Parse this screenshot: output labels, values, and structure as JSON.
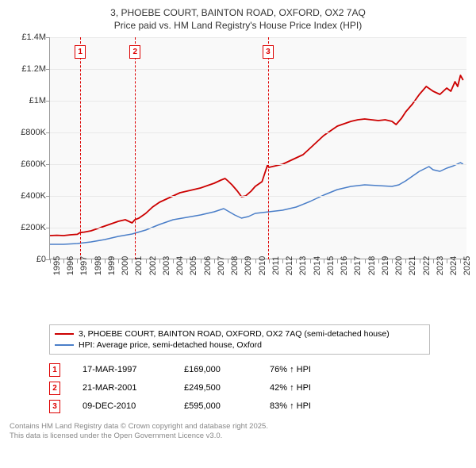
{
  "title_line1": "3, PHOEBE COURT, BAINTON ROAD, OXFORD, OX2 7AQ",
  "title_line2": "Price paid vs. HM Land Registry's House Price Index (HPI)",
  "chart": {
    "type": "line",
    "background_color": "#f9f9f9",
    "grid_color": "#e8e8e8",
    "axis_color": "#999999",
    "text_color": "#333333",
    "x_range": [
      1995,
      2025.5
    ],
    "y_range": [
      0,
      1400000
    ],
    "y_ticks": [
      0,
      200000,
      400000,
      600000,
      800000,
      1000000,
      1200000,
      1400000
    ],
    "y_tick_labels": [
      "£0",
      "£200K",
      "£400K",
      "£600K",
      "£800K",
      "£1M",
      "£1.2M",
      "£1.4M"
    ],
    "x_ticks": [
      1995,
      1996,
      1997,
      1998,
      1999,
      2000,
      2001,
      2002,
      2003,
      2004,
      2005,
      2006,
      2007,
      2008,
      2009,
      2010,
      2011,
      2012,
      2013,
      2014,
      2015,
      2016,
      2017,
      2018,
      2019,
      2020,
      2021,
      2022,
      2023,
      2024,
      2025
    ],
    "series": [
      {
        "name": "price_paid",
        "label": "3, PHOEBE COURT, BAINTON ROAD, OXFORD, OX2 7AQ (semi-detached house)",
        "color": "#cc0000",
        "line_width": 1.8,
        "points": [
          [
            1995.0,
            150000
          ],
          [
            1995.5,
            152000
          ],
          [
            1996.0,
            150000
          ],
          [
            1996.5,
            155000
          ],
          [
            1997.0,
            158000
          ],
          [
            1997.2,
            169000
          ],
          [
            1997.5,
            172000
          ],
          [
            1998.0,
            180000
          ],
          [
            1998.5,
            195000
          ],
          [
            1999.0,
            210000
          ],
          [
            1999.5,
            225000
          ],
          [
            2000.0,
            240000
          ],
          [
            2000.5,
            250000
          ],
          [
            2001.0,
            230000
          ],
          [
            2001.2,
            249500
          ],
          [
            2001.5,
            260000
          ],
          [
            2002.0,
            290000
          ],
          [
            2002.5,
            330000
          ],
          [
            2003.0,
            360000
          ],
          [
            2003.5,
            380000
          ],
          [
            2004.0,
            400000
          ],
          [
            2004.5,
            420000
          ],
          [
            2005.0,
            430000
          ],
          [
            2005.5,
            440000
          ],
          [
            2006.0,
            450000
          ],
          [
            2006.5,
            465000
          ],
          [
            2007.0,
            480000
          ],
          [
            2007.5,
            500000
          ],
          [
            2007.8,
            510000
          ],
          [
            2008.0,
            495000
          ],
          [
            2008.3,
            470000
          ],
          [
            2008.7,
            430000
          ],
          [
            2009.0,
            395000
          ],
          [
            2009.3,
            400000
          ],
          [
            2009.7,
            430000
          ],
          [
            2010.0,
            460000
          ],
          [
            2010.5,
            490000
          ],
          [
            2010.9,
            595000
          ],
          [
            2011.0,
            580000
          ],
          [
            2011.5,
            590000
          ],
          [
            2012.0,
            600000
          ],
          [
            2012.5,
            620000
          ],
          [
            2013.0,
            640000
          ],
          [
            2013.5,
            660000
          ],
          [
            2014.0,
            700000
          ],
          [
            2014.5,
            740000
          ],
          [
            2015.0,
            780000
          ],
          [
            2015.5,
            810000
          ],
          [
            2016.0,
            840000
          ],
          [
            2016.5,
            855000
          ],
          [
            2017.0,
            870000
          ],
          [
            2017.5,
            880000
          ],
          [
            2018.0,
            885000
          ],
          [
            2018.5,
            880000
          ],
          [
            2019.0,
            875000
          ],
          [
            2019.5,
            880000
          ],
          [
            2020.0,
            870000
          ],
          [
            2020.3,
            850000
          ],
          [
            2020.7,
            890000
          ],
          [
            2021.0,
            930000
          ],
          [
            2021.5,
            980000
          ],
          [
            2022.0,
            1040000
          ],
          [
            2022.5,
            1090000
          ],
          [
            2023.0,
            1060000
          ],
          [
            2023.5,
            1040000
          ],
          [
            2024.0,
            1080000
          ],
          [
            2024.3,
            1060000
          ],
          [
            2024.6,
            1120000
          ],
          [
            2024.8,
            1090000
          ],
          [
            2025.0,
            1160000
          ],
          [
            2025.2,
            1130000
          ]
        ]
      },
      {
        "name": "hpi",
        "label": "HPI: Average price, semi-detached house, Oxford",
        "color": "#4a7ec8",
        "line_width": 1.5,
        "points": [
          [
            1995.0,
            95000
          ],
          [
            1996.0,
            95000
          ],
          [
            1997.0,
            100000
          ],
          [
            1998.0,
            110000
          ],
          [
            1999.0,
            125000
          ],
          [
            2000.0,
            145000
          ],
          [
            2001.0,
            160000
          ],
          [
            2002.0,
            185000
          ],
          [
            2003.0,
            220000
          ],
          [
            2004.0,
            250000
          ],
          [
            2005.0,
            265000
          ],
          [
            2006.0,
            280000
          ],
          [
            2007.0,
            300000
          ],
          [
            2007.7,
            320000
          ],
          [
            2008.0,
            305000
          ],
          [
            2008.5,
            280000
          ],
          [
            2009.0,
            260000
          ],
          [
            2009.5,
            270000
          ],
          [
            2010.0,
            290000
          ],
          [
            2011.0,
            300000
          ],
          [
            2012.0,
            310000
          ],
          [
            2013.0,
            330000
          ],
          [
            2014.0,
            365000
          ],
          [
            2015.0,
            405000
          ],
          [
            2016.0,
            440000
          ],
          [
            2017.0,
            460000
          ],
          [
            2018.0,
            470000
          ],
          [
            2019.0,
            465000
          ],
          [
            2020.0,
            460000
          ],
          [
            2020.5,
            470000
          ],
          [
            2021.0,
            495000
          ],
          [
            2022.0,
            555000
          ],
          [
            2022.7,
            585000
          ],
          [
            2023.0,
            565000
          ],
          [
            2023.5,
            555000
          ],
          [
            2024.0,
            575000
          ],
          [
            2024.5,
            590000
          ],
          [
            2025.0,
            610000
          ],
          [
            2025.2,
            600000
          ]
        ]
      }
    ],
    "sale_markers": [
      {
        "n": "1",
        "year": 1997.21
      },
      {
        "n": "2",
        "year": 2001.22
      },
      {
        "n": "3",
        "year": 2010.94
      }
    ],
    "marker_border_color": "#cc0000",
    "marker_dash_color": "#d00000"
  },
  "legend": {
    "border_color": "#bbbbbb",
    "items": [
      {
        "color": "#cc0000",
        "label": "3, PHOEBE COURT, BAINTON ROAD, OXFORD, OX2 7AQ (semi-detached house)"
      },
      {
        "color": "#4a7ec8",
        "label": "HPI: Average price, semi-detached house, Oxford"
      }
    ]
  },
  "sales": [
    {
      "n": "1",
      "date": "17-MAR-1997",
      "price": "£169,000",
      "hpi": "76% ↑ HPI"
    },
    {
      "n": "2",
      "date": "21-MAR-2001",
      "price": "£249,500",
      "hpi": "42% ↑ HPI"
    },
    {
      "n": "3",
      "date": "09-DEC-2010",
      "price": "£595,000",
      "hpi": "83% ↑ HPI"
    }
  ],
  "footer_line1": "Contains HM Land Registry data © Crown copyright and database right 2025.",
  "footer_line2": "This data is licensed under the Open Government Licence v3.0."
}
